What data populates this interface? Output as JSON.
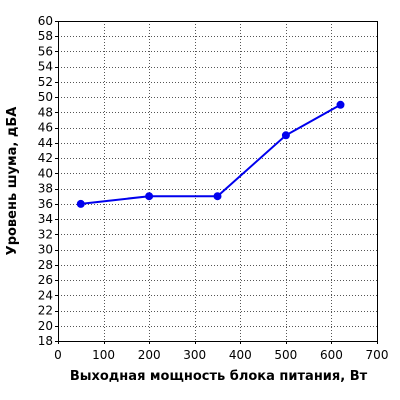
{
  "chart_data": {
    "type": "line",
    "xlabel": "Выходная мощность блока питания, Вт",
    "ylabel": "Уровень шума, дБА",
    "xlim": [
      0,
      700
    ],
    "ylim": [
      18,
      60
    ],
    "x_ticks": [
      0,
      100,
      200,
      300,
      400,
      500,
      600,
      700
    ],
    "y_ticks": [
      18,
      20,
      22,
      24,
      26,
      28,
      30,
      32,
      34,
      36,
      38,
      40,
      42,
      44,
      46,
      48,
      50,
      52,
      54,
      56,
      58,
      60
    ],
    "grid": true,
    "series": [
      {
        "x": [
          50,
          200,
          350,
          500,
          620
        ],
        "values": [
          36,
          37,
          37,
          45,
          49
        ],
        "color": "#0000ee"
      }
    ]
  }
}
